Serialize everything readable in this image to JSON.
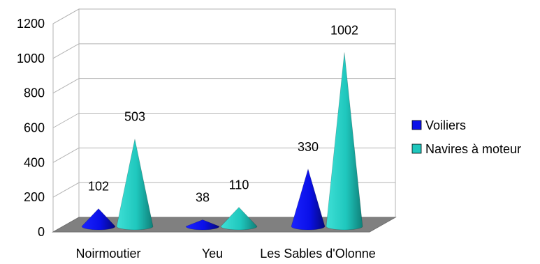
{
  "chart_data": {
    "type": "bar",
    "style": "3d-cone",
    "title": "",
    "xlabel": "",
    "ylabel": "",
    "categories": [
      "Noirmoutier",
      "Yeu",
      "Les Sables d'Olonne"
    ],
    "series": [
      {
        "name": "Voiliers",
        "values": [
          102,
          38,
          330
        ],
        "color": "#0a10e8"
      },
      {
        "name": "Navires à moteur",
        "values": [
          503,
          110,
          1002
        ],
        "color": "#1fc7bd"
      }
    ],
    "ylim": [
      0,
      1200
    ],
    "yticks": [
      "0",
      "200",
      "400",
      "600",
      "800",
      "1000",
      "1200"
    ],
    "grid": true,
    "legend": "right",
    "data_labels": true
  }
}
